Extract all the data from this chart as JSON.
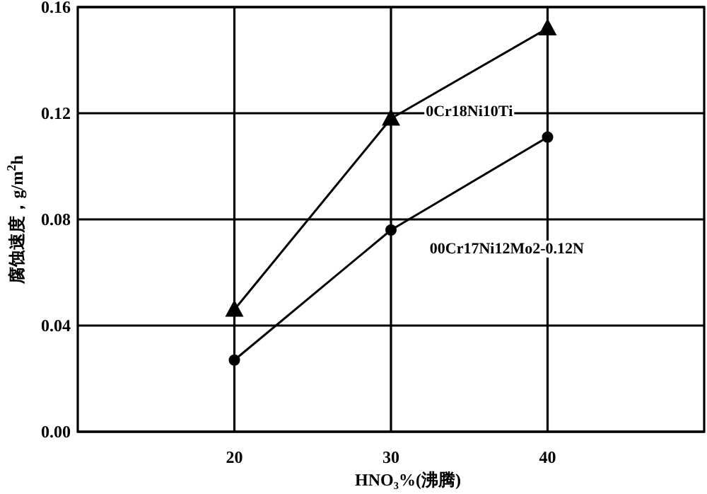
{
  "chart_data": {
    "type": "line",
    "xlabel": "HNO₃%(沸腾)",
    "ylabel": "腐蚀速度，g/m$^{2}$h",
    "xlim": [
      10,
      50
    ],
    "xticks": [
      20,
      30,
      40
    ],
    "ylim": [
      0,
      0.16
    ],
    "yticks": [
      {
        "value": 0,
        "label": "0.00"
      },
      0.04,
      0.08,
      0.12,
      0.16
    ],
    "grid": true,
    "legend": false,
    "series": [
      {
        "name": "0Cr18Ni10Ti",
        "color": "#000000",
        "marker": "triangle",
        "x": [
          20,
          30,
          40
        ],
        "values": [
          0.046,
          0.118,
          0.152
        ]
      },
      {
        "name": "00Cr17Ni12Mo2-0.12N",
        "color": "#000000",
        "marker": "circle",
        "x": [
          20,
          30,
          40
        ],
        "values": [
          0.027,
          0.076,
          0.111
        ]
      }
    ]
  }
}
